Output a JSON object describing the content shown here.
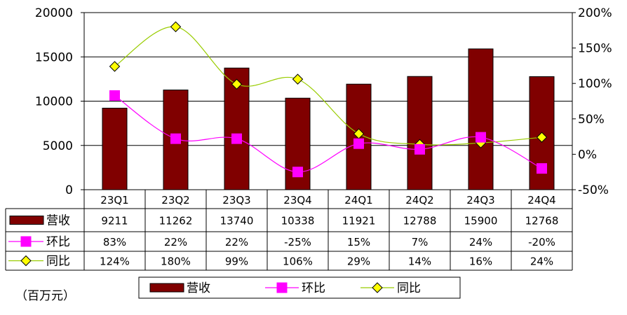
{
  "chart_data": {
    "type": "bar",
    "categories": [
      "23Q1",
      "23Q2",
      "23Q3",
      "23Q4",
      "24Q1",
      "24Q2",
      "24Q3",
      "24Q4"
    ],
    "series": [
      {
        "name": "营收",
        "type": "bar",
        "axis": "left",
        "values": [
          9211,
          11262,
          13740,
          10338,
          11921,
          12788,
          15900,
          12768
        ],
        "table_values": [
          "9211",
          "11262",
          "13740",
          "10338",
          "11921",
          "12788",
          "15900",
          "12768"
        ],
        "color": "#800000"
      },
      {
        "name": "环比",
        "type": "line",
        "axis": "right",
        "marker": "square",
        "values": [
          83,
          22,
          22,
          -25,
          15,
          7,
          24,
          -20
        ],
        "table_values": [
          "83%",
          "22%",
          "22%",
          "-25%",
          "15%",
          "7%",
          "24%",
          "-20%"
        ],
        "color": "#ff00ff"
      },
      {
        "name": "同比",
        "type": "line",
        "axis": "right",
        "marker": "diamond",
        "values": [
          124,
          180,
          99,
          106,
          29,
          14,
          16,
          24
        ],
        "table_values": [
          "124%",
          "180%",
          "99%",
          "106%",
          "29%",
          "14%",
          "16%",
          "24%"
        ],
        "color": "#99cc00",
        "marker_color": "#ffff00"
      }
    ],
    "y_left": {
      "min": 0,
      "max": 20000,
      "ticks": [
        "0",
        "5000",
        "10000",
        "15000",
        "20000"
      ]
    },
    "y_right": {
      "min": -50,
      "max": 200,
      "ticks": [
        "-50%",
        "0%",
        "50%",
        "100%",
        "150%",
        "200%"
      ]
    },
    "grid": true,
    "data_table": true,
    "legend": "bottom",
    "unit_label": "（百万元）"
  }
}
